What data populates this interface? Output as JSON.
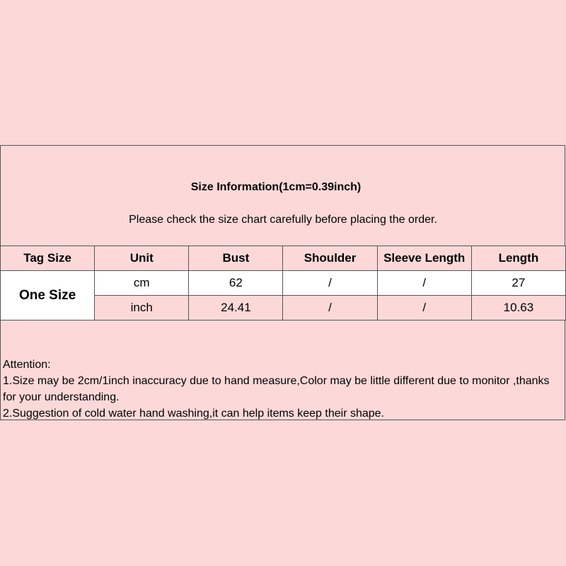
{
  "title": "Size Information(1cm=0.39inch)",
  "subtitle": "Please check the size chart carefully before placing the order.",
  "table": {
    "headers": [
      "Tag Size",
      "Unit",
      "Bust",
      "Shoulder",
      "Sleeve Length",
      "Length"
    ],
    "tag_size": "One Size",
    "rows": [
      [
        "cm",
        "62",
        "/",
        "/",
        "27"
      ],
      [
        "inch",
        "24.41",
        "/",
        "/",
        "10.63"
      ]
    ]
  },
  "attention": {
    "heading": "Attention:",
    "lines": [
      "1.Size may be 2cm/1inch inaccuracy due to hand measure,Color may be little different due to monitor ,thanks for your understanding.",
      "2.Suggestion of cold water hand washing,it can help items keep their shape."
    ]
  },
  "colors": {
    "background": "#fcd9d8",
    "row_white": "#ffffff"
  }
}
